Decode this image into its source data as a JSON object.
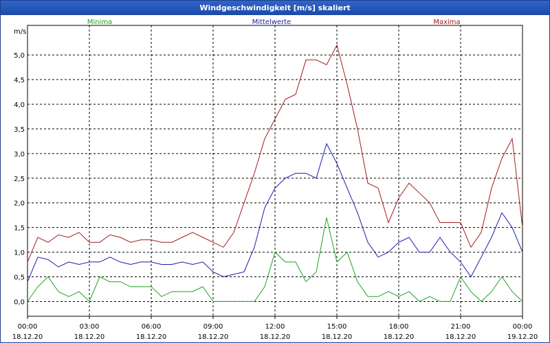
{
  "window": {
    "title": "Windgeschwindigkeit [m/s] skaliert"
  },
  "chart_data": {
    "type": "line",
    "title": "Windgeschwindigkeit [m/s] skaliert",
    "ylabel": "m/s",
    "ylim": [
      -0.3,
      5.6
    ],
    "yticks": [
      0.0,
      0.5,
      1.0,
      1.5,
      2.0,
      2.5,
      3.0,
      3.5,
      4.0,
      4.5,
      5.0
    ],
    "ytick_labels": [
      "0,0",
      "0,5",
      "1,0",
      "1,5",
      "2,0",
      "2,5",
      "3,0",
      "3,5",
      "4,0",
      "4,5",
      "5,0"
    ],
    "xlim_hours": [
      0,
      24
    ],
    "xticks": [
      {
        "h": 0,
        "time": "00:00",
        "date": "18.12.20"
      },
      {
        "h": 3,
        "time": "03:00",
        "date": "18.12.20"
      },
      {
        "h": 6,
        "time": "06:00",
        "date": "18.12.20"
      },
      {
        "h": 9,
        "time": "09:00",
        "date": "18.12.20"
      },
      {
        "h": 12,
        "time": "12:00",
        "date": "18.12.20"
      },
      {
        "h": 15,
        "time": "15:00",
        "date": "18.12.20"
      },
      {
        "h": 18,
        "time": "18:00",
        "date": "18.12.20"
      },
      {
        "h": 21,
        "time": "21:00",
        "date": "18.12.20"
      },
      {
        "h": 24,
        "time": "00:00",
        "date": "19.12.20"
      }
    ],
    "grid": true,
    "series": [
      {
        "name": "Minima",
        "color": "#1ea01e",
        "x": [
          0,
          0.5,
          1,
          1.5,
          2,
          2.5,
          3,
          3.5,
          4,
          4.5,
          5,
          5.5,
          6,
          6.5,
          7,
          7.5,
          8,
          8.5,
          9,
          9.5,
          10,
          10.5,
          11,
          11.5,
          12,
          12.5,
          13,
          13.5,
          14,
          14.5,
          15,
          15.5,
          16,
          16.5,
          17,
          17.5,
          18,
          18.5,
          19,
          19.5,
          20,
          20.5,
          21,
          21.5,
          22,
          22.5,
          23,
          23.5,
          24
        ],
        "values": [
          0.0,
          0.3,
          0.5,
          0.2,
          0.1,
          0.2,
          0.0,
          0.5,
          0.4,
          0.4,
          0.3,
          0.3,
          0.3,
          0.1,
          0.2,
          0.2,
          0.2,
          0.3,
          0.0,
          0.0,
          0.0,
          0.0,
          0.0,
          0.3,
          1.0,
          0.8,
          0.8,
          0.4,
          0.6,
          1.7,
          0.8,
          1.0,
          0.4,
          0.1,
          0.1,
          0.2,
          0.1,
          0.2,
          0.0,
          0.1,
          0.0,
          0.0,
          0.5,
          0.2,
          0.0,
          0.2,
          0.5,
          0.2,
          0.0
        ]
      },
      {
        "name": "Mittelwerte",
        "color": "#1a1aa6",
        "x": [
          0,
          0.5,
          1,
          1.5,
          2,
          2.5,
          3,
          3.5,
          4,
          4.5,
          5,
          5.5,
          6,
          6.5,
          7,
          7.5,
          8,
          8.5,
          9,
          9.5,
          10,
          10.5,
          11,
          11.5,
          12,
          12.5,
          13,
          13.5,
          14,
          14.5,
          15,
          15.5,
          16,
          16.5,
          17,
          17.5,
          18,
          18.5,
          19,
          19.5,
          20,
          20.5,
          21,
          21.5,
          22,
          22.5,
          23,
          23.5,
          24
        ],
        "values": [
          0.4,
          0.9,
          0.85,
          0.7,
          0.8,
          0.75,
          0.8,
          0.8,
          0.9,
          0.8,
          0.75,
          0.8,
          0.8,
          0.75,
          0.75,
          0.8,
          0.75,
          0.8,
          0.6,
          0.5,
          0.55,
          0.6,
          1.1,
          1.9,
          2.3,
          2.5,
          2.6,
          2.6,
          2.5,
          3.2,
          2.8,
          2.3,
          1.8,
          1.2,
          0.9,
          1.0,
          1.2,
          1.3,
          1.0,
          1.0,
          1.3,
          1.0,
          0.8,
          0.5,
          0.9,
          1.3,
          1.8,
          1.5,
          1.0
        ]
      },
      {
        "name": "Maxima",
        "color": "#a01c1c",
        "x": [
          0,
          0.5,
          1,
          1.5,
          2,
          2.5,
          3,
          3.5,
          4,
          4.5,
          5,
          5.5,
          6,
          6.5,
          7,
          7.5,
          8,
          8.5,
          9,
          9.5,
          10,
          10.5,
          11,
          11.5,
          12,
          12.5,
          13,
          13.5,
          14,
          14.5,
          15,
          15.5,
          16,
          16.5,
          17,
          17.5,
          18,
          18.5,
          19,
          19.5,
          20,
          20.5,
          21,
          21.5,
          22,
          22.5,
          23,
          23.5,
          24
        ],
        "values": [
          0.8,
          1.3,
          1.2,
          1.35,
          1.3,
          1.4,
          1.2,
          1.2,
          1.35,
          1.3,
          1.2,
          1.25,
          1.25,
          1.2,
          1.2,
          1.3,
          1.4,
          1.3,
          1.2,
          1.1,
          1.4,
          2.0,
          2.6,
          3.3,
          3.7,
          4.1,
          4.2,
          4.9,
          4.9,
          4.8,
          5.2,
          4.4,
          3.5,
          2.4,
          2.3,
          1.6,
          2.1,
          2.4,
          2.2,
          2.0,
          1.6,
          1.6,
          1.6,
          1.1,
          1.4,
          2.3,
          2.9,
          3.3,
          1.5
        ]
      }
    ]
  }
}
